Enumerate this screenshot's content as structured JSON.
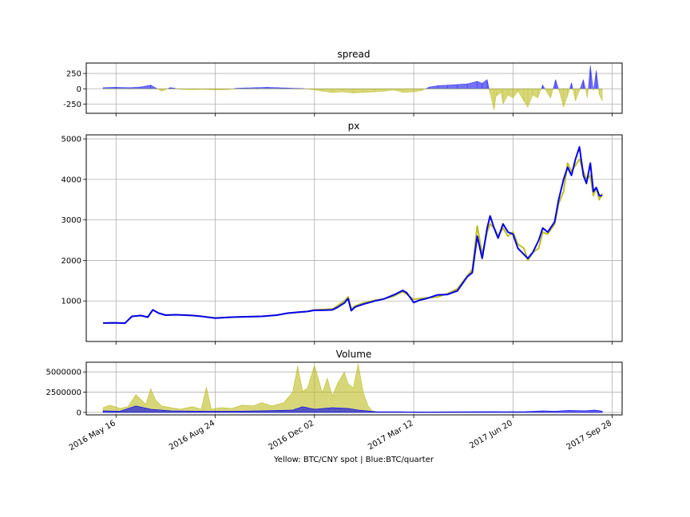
{
  "figure_caption": "Yellow: BTC/CNY spot | Blue:BTC/quarter",
  "colors": {
    "spot": "#bcbd22",
    "quarter": "#0000ee",
    "grid": "#b0b0b0"
  },
  "x_ticks": [
    "2016 May 16",
    "2016 Aug 24",
    "2016 Dec 02",
    "2017 Mar 12",
    "2017 Jun 20",
    "2017 Sep 28"
  ],
  "chart_data": [
    {
      "type": "area",
      "title": "spread",
      "grid": true,
      "ylim": [
        -400,
        420
      ],
      "yticks": [
        -250,
        0,
        250
      ],
      "x_range": [
        "2016-04-16",
        "2017-10-08"
      ],
      "series": [
        {
          "x": [
            "2016-05-03",
            "2016-05-15",
            "2016-05-30",
            "2016-06-10",
            "2016-06-20",
            "2016-07-01",
            "2016-07-10",
            "2016-07-20",
            "2016-08-01",
            "2016-08-12",
            "2016-08-24",
            "2016-09-05",
            "2016-09-15",
            "2016-09-25",
            "2016-10-05",
            "2016-10-15",
            "2016-10-25",
            "2016-11-01",
            "2016-11-10",
            "2016-11-20",
            "2016-12-02",
            "2016-12-10",
            "2016-12-20",
            "2016-12-31",
            "2017-01-10",
            "2017-01-20",
            "2017-02-01",
            "2017-02-10",
            "2017-02-20",
            "2017-03-01",
            "2017-03-12",
            "2017-03-20",
            "2017-03-28",
            "2017-04-05",
            "2017-04-15",
            "2017-04-25",
            "2017-05-05",
            "2017-05-15",
            "2017-05-20",
            "2017-05-25",
            "2017-05-28",
            "2017-06-01",
            "2017-06-03",
            "2017-06-08",
            "2017-06-10",
            "2017-06-15",
            "2017-06-20",
            "2017-06-25",
            "2017-07-01",
            "2017-07-05",
            "2017-07-10",
            "2017-07-15",
            "2017-07-20",
            "2017-07-25",
            "2017-07-28",
            "2017-08-02",
            "2017-08-06",
            "2017-08-10",
            "2017-08-14",
            "2017-08-18",
            "2017-08-22",
            "2017-08-26",
            "2017-08-30",
            "2017-09-03",
            "2017-09-06",
            "2017-09-09",
            "2017-09-12",
            "2017-09-15",
            "2017-09-18"
          ],
          "values": [
            20,
            25,
            20,
            30,
            60,
            -40,
            20,
            -10,
            -15,
            -10,
            -20,
            -15,
            10,
            15,
            20,
            25,
            20,
            15,
            10,
            5,
            -20,
            -40,
            -60,
            -50,
            -70,
            -60,
            -50,
            -40,
            -20,
            -60,
            -50,
            -30,
            30,
            50,
            60,
            70,
            80,
            120,
            90,
            150,
            -80,
            -350,
            -120,
            -60,
            -250,
            -100,
            -150,
            -40,
            -200,
            -300,
            -100,
            -150,
            60,
            -80,
            -150,
            150,
            -60,
            -300,
            -120,
            100,
            -200,
            -30,
            150,
            -150,
            380,
            -40,
            300,
            -100,
            -200
          ]
        }
      ]
    },
    {
      "type": "line",
      "title": "px",
      "grid": true,
      "ylim": [
        0,
        5100
      ],
      "yticks": [
        1000,
        2000,
        3000,
        4000,
        5000
      ],
      "x_range": [
        "2016-04-16",
        "2017-10-08"
      ],
      "series": [
        {
          "name": "BTC/CNY spot",
          "x": [
            "2016-05-03",
            "2016-05-15",
            "2016-05-25",
            "2016-06-01",
            "2016-06-10",
            "2016-06-17",
            "2016-06-22",
            "2016-06-28",
            "2016-07-05",
            "2016-07-15",
            "2016-07-25",
            "2016-08-02",
            "2016-08-10",
            "2016-08-24",
            "2016-09-10",
            "2016-09-25",
            "2016-10-10",
            "2016-10-25",
            "2016-11-05",
            "2016-11-15",
            "2016-11-25",
            "2016-12-02",
            "2016-12-10",
            "2016-12-20",
            "2016-12-25",
            "2017-01-01",
            "2017-01-05",
            "2017-01-08",
            "2017-01-12",
            "2017-01-20",
            "2017-02-01",
            "2017-02-10",
            "2017-02-20",
            "2017-03-01",
            "2017-03-05",
            "2017-03-12",
            "2017-03-18",
            "2017-03-25",
            "2017-04-05",
            "2017-04-15",
            "2017-04-25",
            "2017-05-05",
            "2017-05-10",
            "2017-05-15",
            "2017-05-20",
            "2017-05-25",
            "2017-05-28",
            "2017-06-01",
            "2017-06-05",
            "2017-06-10",
            "2017-06-15",
            "2017-06-20",
            "2017-06-25",
            "2017-07-01",
            "2017-07-05",
            "2017-07-10",
            "2017-07-16",
            "2017-07-20",
            "2017-07-25",
            "2017-08-01",
            "2017-08-05",
            "2017-08-10",
            "2017-08-14",
            "2017-08-18",
            "2017-08-22",
            "2017-08-26",
            "2017-08-30",
            "2017-09-02",
            "2017-09-06",
            "2017-09-09",
            "2017-09-12",
            "2017-09-15",
            "2017-09-18"
          ],
          "values": [
            450,
            460,
            450,
            620,
            640,
            600,
            780,
            700,
            650,
            660,
            650,
            640,
            620,
            580,
            600,
            610,
            620,
            650,
            700,
            720,
            740,
            780,
            790,
            800,
            880,
            1000,
            1100,
            800,
            880,
            950,
            1020,
            1050,
            1120,
            1230,
            1160,
            1040,
            1060,
            1080,
            1100,
            1180,
            1300,
            1620,
            1780,
            2850,
            2150,
            2700,
            2900,
            2800,
            2600,
            2800,
            2600,
            2700,
            2400,
            2300,
            2000,
            2200,
            2300,
            2700,
            2650,
            2900,
            3400,
            3700,
            4400,
            4200,
            4350,
            4500,
            4200,
            4000,
            4100,
            3600,
            3800,
            3500,
            3650
          ]
        },
        {
          "name": "BTC/quarter",
          "x": [
            "2016-05-03",
            "2016-05-15",
            "2016-05-25",
            "2016-06-01",
            "2016-06-10",
            "2016-06-17",
            "2016-06-22",
            "2016-06-28",
            "2016-07-05",
            "2016-07-15",
            "2016-07-25",
            "2016-08-02",
            "2016-08-10",
            "2016-08-24",
            "2016-09-10",
            "2016-09-25",
            "2016-10-10",
            "2016-10-25",
            "2016-11-05",
            "2016-11-15",
            "2016-11-25",
            "2016-12-02",
            "2016-12-10",
            "2016-12-20",
            "2016-12-25",
            "2017-01-01",
            "2017-01-05",
            "2017-01-08",
            "2017-01-12",
            "2017-01-20",
            "2017-02-01",
            "2017-02-10",
            "2017-02-20",
            "2017-03-01",
            "2017-03-05",
            "2017-03-12",
            "2017-03-18",
            "2017-03-25",
            "2017-04-05",
            "2017-04-15",
            "2017-04-25",
            "2017-05-05",
            "2017-05-10",
            "2017-05-15",
            "2017-05-20",
            "2017-05-25",
            "2017-05-28",
            "2017-06-01",
            "2017-06-05",
            "2017-06-10",
            "2017-06-15",
            "2017-06-20",
            "2017-06-25",
            "2017-07-01",
            "2017-07-05",
            "2017-07-10",
            "2017-07-16",
            "2017-07-20",
            "2017-07-25",
            "2017-08-01",
            "2017-08-05",
            "2017-08-10",
            "2017-08-14",
            "2017-08-18",
            "2017-08-22",
            "2017-08-26",
            "2017-08-30",
            "2017-09-02",
            "2017-09-06",
            "2017-09-09",
            "2017-09-12",
            "2017-09-15",
            "2017-09-18"
          ],
          "values": [
            455,
            460,
            450,
            620,
            640,
            600,
            780,
            700,
            650,
            660,
            650,
            640,
            620,
            575,
            600,
            610,
            620,
            650,
            700,
            720,
            740,
            770,
            770,
            780,
            840,
            950,
            1060,
            760,
            850,
            920,
            1000,
            1050,
            1150,
            1260,
            1200,
            960,
            1020,
            1060,
            1150,
            1160,
            1250,
            1600,
            1700,
            2600,
            2050,
            2800,
            3100,
            2800,
            2550,
            2900,
            2700,
            2650,
            2300,
            2150,
            2050,
            2200,
            2500,
            2800,
            2700,
            2950,
            3500,
            4000,
            4300,
            4100,
            4500,
            4800,
            4100,
            3900,
            4400,
            3700,
            3800,
            3600,
            3600
          ]
        }
      ]
    },
    {
      "type": "area",
      "title": "Volume",
      "grid": true,
      "ylim": [
        -300000,
        6200000
      ],
      "yticks": [
        0,
        2500000,
        5000000
      ],
      "x_range": [
        "2016-04-16",
        "2017-10-08"
      ],
      "series": [
        {
          "name": "BTC/CNY spot",
          "x": [
            "2016-05-03",
            "2016-05-10",
            "2016-05-20",
            "2016-05-28",
            "2016-06-05",
            "2016-06-15",
            "2016-06-20",
            "2016-06-25",
            "2016-07-01",
            "2016-07-10",
            "2016-07-20",
            "2016-08-01",
            "2016-08-10",
            "2016-08-15",
            "2016-08-20",
            "2016-08-30",
            "2016-09-10",
            "2016-09-20",
            "2016-10-01",
            "2016-10-10",
            "2016-10-20",
            "2016-11-01",
            "2016-11-10",
            "2016-11-15",
            "2016-11-20",
            "2016-11-25",
            "2016-12-02",
            "2016-12-10",
            "2016-12-15",
            "2016-12-20",
            "2016-12-25",
            "2017-01-01",
            "2017-01-05",
            "2017-01-10",
            "2017-01-15",
            "2017-01-20",
            "2017-01-25",
            "2017-01-29",
            "2017-02-05",
            "2017-03-01",
            "2017-04-01",
            "2017-05-01",
            "2017-06-01",
            "2017-07-01",
            "2017-08-01",
            "2017-09-01",
            "2017-09-18"
          ],
          "values": [
            600000,
            900000,
            500000,
            700000,
            2200000,
            1000000,
            2900000,
            1500000,
            800000,
            600000,
            400000,
            700000,
            400000,
            3100000,
            400000,
            600000,
            500000,
            900000,
            800000,
            1200000,
            800000,
            1200000,
            2500000,
            5700000,
            2600000,
            3000000,
            5800000,
            2400000,
            4200000,
            2000000,
            3500000,
            5000000,
            3500000,
            3000000,
            6000000,
            2500000,
            800000,
            200000,
            20000,
            20000,
            20000,
            20000,
            20000,
            20000,
            20000,
            20000,
            20000
          ]
        },
        {
          "name": "BTC/quarter",
          "x": [
            "2016-05-03",
            "2016-05-20",
            "2016-06-05",
            "2016-06-20",
            "2016-07-10",
            "2016-08-10",
            "2016-09-10",
            "2016-10-10",
            "2016-11-10",
            "2016-11-20",
            "2016-12-02",
            "2016-12-20",
            "2017-01-05",
            "2017-01-15",
            "2017-02-01",
            "2017-03-01",
            "2017-04-01",
            "2017-05-01",
            "2017-06-01",
            "2017-07-01",
            "2017-07-20",
            "2017-08-01",
            "2017-08-15",
            "2017-09-01",
            "2017-09-10",
            "2017-09-18"
          ],
          "values": [
            200000,
            150000,
            800000,
            400000,
            200000,
            150000,
            150000,
            200000,
            300000,
            700000,
            400000,
            600000,
            500000,
            300000,
            100000,
            80000,
            60000,
            80000,
            100000,
            80000,
            200000,
            150000,
            250000,
            200000,
            300000,
            150000
          ]
        }
      ]
    }
  ]
}
